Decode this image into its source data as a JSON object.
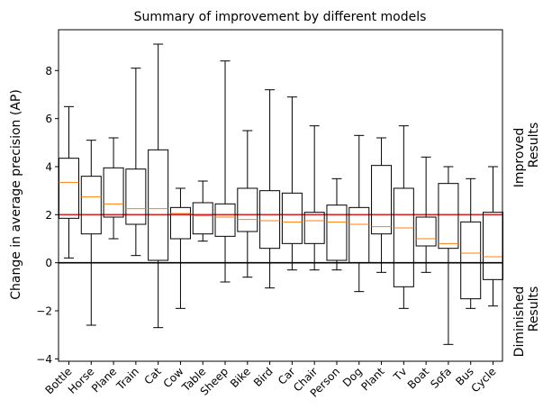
{
  "chart_data": {
    "type": "box",
    "title": "Summary of improvement by different models",
    "xlabel": "",
    "ylabel": "Change in average precision (AP)",
    "ylim": [
      -4.1,
      9.7
    ],
    "yticks": [
      -4,
      -2,
      0,
      2,
      4,
      6,
      8
    ],
    "grid": false,
    "categories": [
      "Bottle",
      "Horse",
      "Plane",
      "Train",
      "Cat",
      "Cow",
      "Table",
      "Sheep",
      "Bike",
      "Bird",
      "Car",
      "Chair",
      "Person",
      "Dog",
      "Plant",
      "Tv",
      "Boat",
      "Sofa",
      "Bus",
      "Cycle"
    ],
    "boxes": [
      {
        "min": 0.2,
        "q1": 1.85,
        "median": 3.35,
        "q3": 4.35,
        "max": 6.5
      },
      {
        "min": -2.6,
        "q1": 1.2,
        "median": 2.75,
        "q3": 3.6,
        "max": 5.1
      },
      {
        "min": 1.0,
        "q1": 1.9,
        "median": 2.45,
        "q3": 3.95,
        "max": 5.2
      },
      {
        "min": 0.3,
        "q1": 1.6,
        "median": 2.25,
        "q3": 3.9,
        "max": 8.1
      },
      {
        "min": -2.7,
        "q1": 0.1,
        "median": 2.25,
        "q3": 4.7,
        "max": 9.1
      },
      {
        "min": -1.9,
        "q1": 1.0,
        "median": 2.05,
        "q3": 2.3,
        "max": 3.1
      },
      {
        "min": 0.9,
        "q1": 1.2,
        "median": 1.95,
        "q3": 2.5,
        "max": 3.4
      },
      {
        "min": -0.8,
        "q1": 1.1,
        "median": 1.9,
        "q3": 2.45,
        "max": 8.4
      },
      {
        "min": -0.6,
        "q1": 1.3,
        "median": 1.8,
        "q3": 3.1,
        "max": 5.5
      },
      {
        "min": -1.05,
        "q1": 0.6,
        "median": 1.75,
        "q3": 3.0,
        "max": 7.2
      },
      {
        "min": -0.3,
        "q1": 0.8,
        "median": 1.7,
        "q3": 2.9,
        "max": 6.9
      },
      {
        "min": -0.3,
        "q1": 0.8,
        "median": 1.75,
        "q3": 2.1,
        "max": 5.7
      },
      {
        "min": -0.3,
        "q1": 0.1,
        "median": 1.7,
        "q3": 2.4,
        "max": 3.5
      },
      {
        "min": -1.2,
        "q1": 0.0,
        "median": 1.6,
        "q3": 2.3,
        "max": 5.3
      },
      {
        "min": -0.4,
        "q1": 1.2,
        "median": 1.5,
        "q3": 4.05,
        "max": 5.2
      },
      {
        "min": -1.9,
        "q1": -1.0,
        "median": 1.45,
        "q3": 3.1,
        "max": 5.7
      },
      {
        "min": -0.4,
        "q1": 0.7,
        "median": 1.0,
        "q3": 1.9,
        "max": 4.4
      },
      {
        "min": -3.4,
        "q1": 0.6,
        "median": 0.8,
        "q3": 3.3,
        "max": 4.0
      },
      {
        "min": -1.9,
        "q1": -1.5,
        "median": 0.4,
        "q3": 1.7,
        "max": 3.5
      },
      {
        "min": -1.8,
        "q1": -0.7,
        "median": 0.25,
        "q3": 2.1,
        "max": 4.0
      }
    ],
    "reference_lines": [
      {
        "y": 2,
        "color": "#d62728"
      },
      {
        "y": 0,
        "color": "#000000"
      }
    ],
    "side_labels": {
      "improved": [
        "Improved",
        "Results"
      ],
      "diminished": [
        "Diminished",
        "Results"
      ]
    },
    "median_color": "#ff7f0e",
    "box_color": "#000000"
  }
}
